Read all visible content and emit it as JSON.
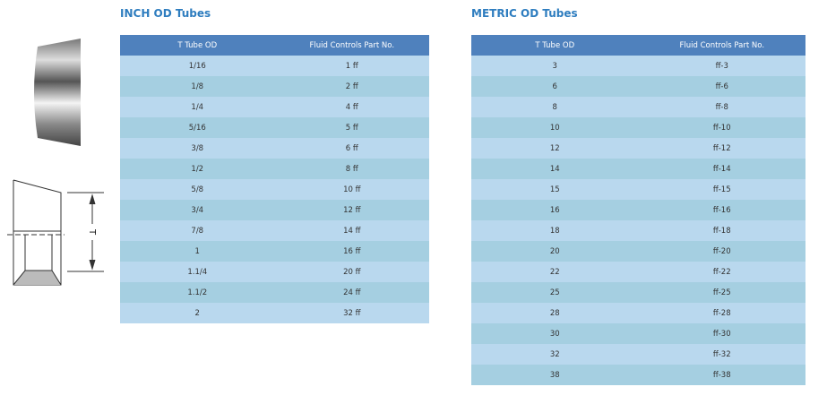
{
  "drawing": {
    "label": "T"
  },
  "inch": {
    "title": "INCH OD Tubes",
    "header": [
      "T Tube OD",
      "Fluid Controls Part No."
    ],
    "rows": [
      [
        "1/16",
        "1 ff"
      ],
      [
        "1/8",
        "2 ff"
      ],
      [
        "1/4",
        "4 ff"
      ],
      [
        "5/16",
        "5 ff"
      ],
      [
        "3/8",
        "6 ff"
      ],
      [
        "1/2",
        "8 ff"
      ],
      [
        "5/8",
        "10 ff"
      ],
      [
        "3/4",
        "12 ff"
      ],
      [
        "7/8",
        "14 ff"
      ],
      [
        "1",
        "16 ff"
      ],
      [
        "1.1/4",
        "20 ff"
      ],
      [
        "1.1/2",
        "24 ff"
      ],
      [
        "2",
        "32 ff"
      ]
    ]
  },
  "metric": {
    "title": "METRIC OD Tubes",
    "header": [
      "T Tube OD",
      "Fluid Controls Part No."
    ],
    "rows": [
      [
        "3",
        "ff-3"
      ],
      [
        "6",
        "ff-6"
      ],
      [
        "8",
        "ff-8"
      ],
      [
        "10",
        "ff-10"
      ],
      [
        "12",
        "ff-12"
      ],
      [
        "14",
        "ff-14"
      ],
      [
        "15",
        "ff-15"
      ],
      [
        "16",
        "ff-16"
      ],
      [
        "18",
        "ff-18"
      ],
      [
        "20",
        "ff-20"
      ],
      [
        "22",
        "ff-22"
      ],
      [
        "25",
        "ff-25"
      ],
      [
        "28",
        "ff-28"
      ],
      [
        "30",
        "ff-30"
      ],
      [
        "32",
        "ff-32"
      ],
      [
        "38",
        "ff-38"
      ]
    ]
  }
}
